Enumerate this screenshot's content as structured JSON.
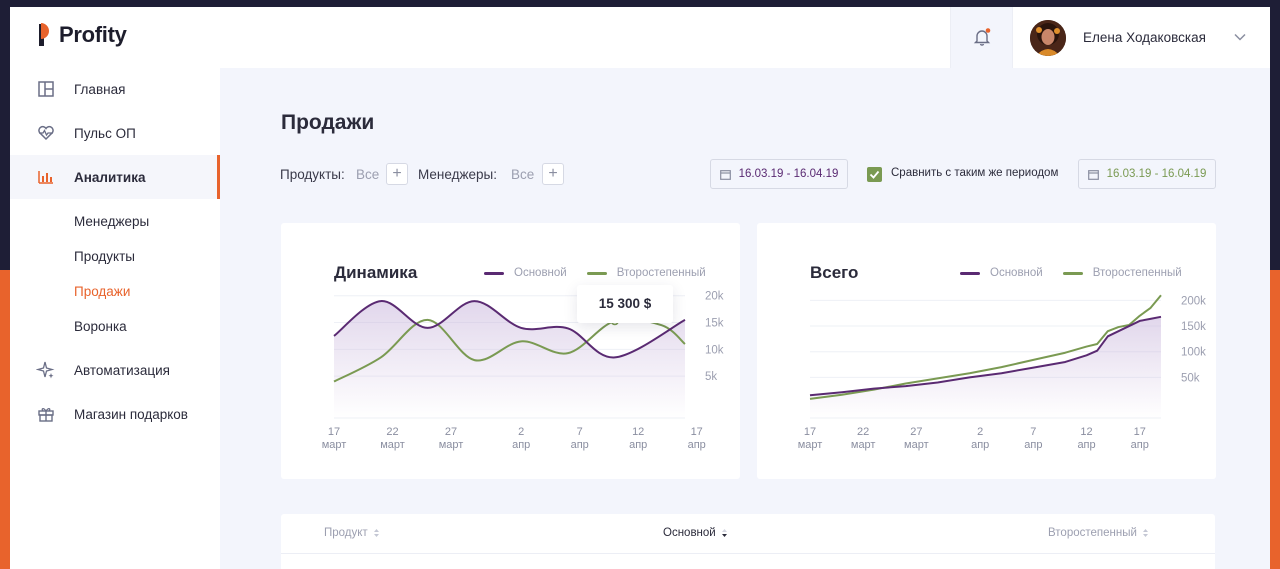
{
  "brand": {
    "name": "Profity"
  },
  "nav": {
    "items": [
      {
        "label": "Главная",
        "icon": "layout-icon"
      },
      {
        "label": "Пульс ОП",
        "icon": "heart-pulse-icon"
      },
      {
        "label": "Аналитика",
        "icon": "bar-chart-icon"
      },
      {
        "label": "Автоматизация",
        "icon": "sparkle-icon"
      },
      {
        "label": "Магазин подарков",
        "icon": "gift-icon"
      }
    ],
    "sub": [
      "Менеджеры",
      "Продукты",
      "Продажи",
      "Воронка"
    ],
    "active_item": "Аналитика",
    "active_sub": "Продажи"
  },
  "topbar": {
    "user_name": "Елена Ходаковская"
  },
  "page": {
    "title": "Продажи"
  },
  "filters": {
    "products_label": "Продукты:",
    "products_value": "Все",
    "managers_label": "Менеджеры:",
    "managers_value": "Все",
    "add": "+",
    "date_primary": "16.03.19 - 16.04.19",
    "compare_label": "Сравнить с таким же периодом",
    "compare_checked": true,
    "date_secondary": "16.03.19 - 16.04.19"
  },
  "colors": {
    "primary": "#5a2a72",
    "secondary": "#7a9a52",
    "accent": "#e8632c"
  },
  "chart_data": [
    {
      "type": "line",
      "title": "Динамика",
      "x": [
        "17 март",
        "22 март",
        "27 март",
        "2 апр",
        "7 апр",
        "12 апр",
        "17 апр"
      ],
      "x_days": [
        0,
        5,
        10,
        16,
        21,
        26,
        31
      ],
      "ylim": [
        0,
        22000
      ],
      "yticks": [
        "20k",
        "15k",
        "10k",
        "5k"
      ],
      "ytick_values": [
        20000,
        15000,
        10000,
        5000
      ],
      "series": [
        {
          "name": "Основной",
          "points": [
            [
              0,
              12500
            ],
            [
              4,
              19000
            ],
            [
              8,
              14000
            ],
            [
              12,
              19000
            ],
            [
              16,
              14000
            ],
            [
              20,
              13900
            ],
            [
              24,
              8500
            ],
            [
              30,
              15500
            ]
          ]
        },
        {
          "name": "Второстепенный",
          "points": [
            [
              0,
              4000
            ],
            [
              4,
              8500
            ],
            [
              8,
              15500
            ],
            [
              12,
              8000
            ],
            [
              16,
              11500
            ],
            [
              20,
              9300
            ],
            [
              24,
              15300
            ],
            [
              28,
              14500
            ],
            [
              30,
              11000
            ]
          ]
        }
      ],
      "tooltip": "15 300 $"
    },
    {
      "type": "line",
      "title": "Всего",
      "x": [
        "17 март",
        "22 март",
        "27 март",
        "2 апр",
        "7 апр",
        "12 апр",
        "17 апр"
      ],
      "x_days": [
        0,
        5,
        10,
        16,
        21,
        26,
        31
      ],
      "ylim": [
        0,
        230000
      ],
      "yticks": [
        "200k",
        "150k",
        "100k",
        "50k"
      ],
      "ytick_values": [
        200000,
        150000,
        100000,
        50000
      ],
      "series": [
        {
          "name": "Основной",
          "points": [
            [
              0,
              15000
            ],
            [
              3,
              21000
            ],
            [
              6,
              28000
            ],
            [
              9,
              33000
            ],
            [
              12,
              40000
            ],
            [
              15,
              50000
            ],
            [
              18,
              58000
            ],
            [
              21,
              69000
            ],
            [
              24,
              80000
            ],
            [
              26,
              93000
            ],
            [
              27,
              102000
            ],
            [
              28,
              130000
            ],
            [
              29,
              140000
            ],
            [
              30,
              150000
            ],
            [
              31,
              160000
            ],
            [
              32,
              164000
            ],
            [
              33,
              168000
            ]
          ]
        },
        {
          "name": "Второстепенный",
          "points": [
            [
              0,
              8000
            ],
            [
              3,
              16000
            ],
            [
              6,
              26000
            ],
            [
              9,
              38000
            ],
            [
              12,
              48000
            ],
            [
              15,
              58000
            ],
            [
              18,
              70000
            ],
            [
              21,
              84000
            ],
            [
              24,
              98000
            ],
            [
              26,
              110000
            ],
            [
              27,
              115000
            ],
            [
              28,
              140000
            ],
            [
              29,
              148000
            ],
            [
              30,
              152000
            ],
            [
              31,
              170000
            ],
            [
              32,
              185000
            ],
            [
              33,
              210000
            ]
          ]
        }
      ]
    }
  ],
  "table": {
    "col_product": "Продукт",
    "col_primary": "Основной",
    "col_secondary": "Второстепенный"
  }
}
